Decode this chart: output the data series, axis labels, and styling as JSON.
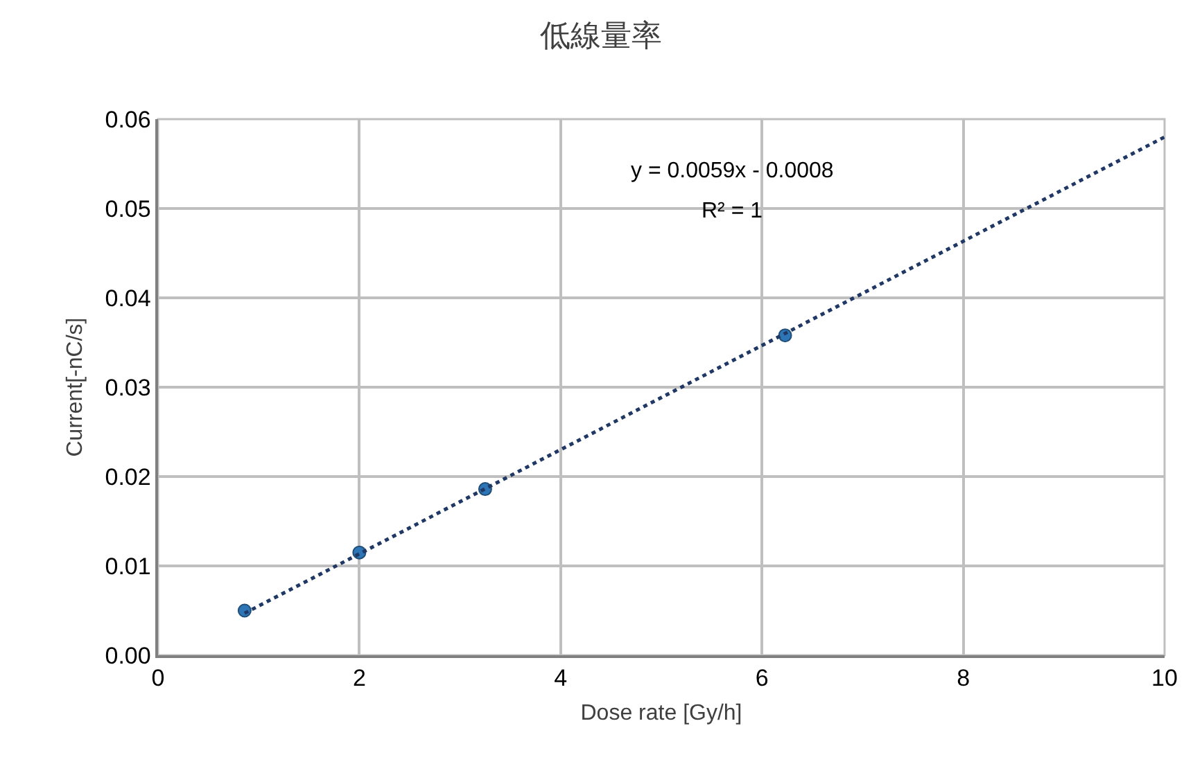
{
  "chart_data": {
    "type": "scatter",
    "title": "低線量率",
    "xlabel": "Dose rate [Gy/h]",
    "ylabel": "Current[-nC/s]",
    "x": [
      0.86,
      2.0,
      3.25,
      6.23
    ],
    "series": [
      {
        "color": "#2e75b6",
        "marker": "circle",
        "values": [
          0.005,
          0.0115,
          0.0186,
          0.0358
        ]
      },
      {
        "type": "line",
        "color": "#1f3864",
        "marker": "none",
        "line_style": "dotted",
        "x": [
          0.86,
          10
        ],
        "values": [
          0.0047,
          0.058
        ]
      }
    ],
    "annotations": [
      "y = 0.0059x - 0.0008",
      "R² = 1"
    ],
    "xlim": [
      0,
      10
    ],
    "xticks": [
      0,
      2,
      4,
      6,
      8,
      10
    ],
    "ylim": [
      0,
      0.06
    ],
    "yticks": [
      {
        "value": 0,
        "label": "0.00"
      },
      {
        "value": 0.01,
        "label": "0.01"
      },
      {
        "value": 0.02,
        "label": "0.02"
      },
      {
        "value": 0.03,
        "label": "0.03"
      },
      {
        "value": 0.04,
        "label": "0.04"
      },
      {
        "value": 0.05,
        "label": "0.05"
      },
      {
        "value": 0.06,
        "label": "0.06"
      }
    ],
    "grid": true
  }
}
